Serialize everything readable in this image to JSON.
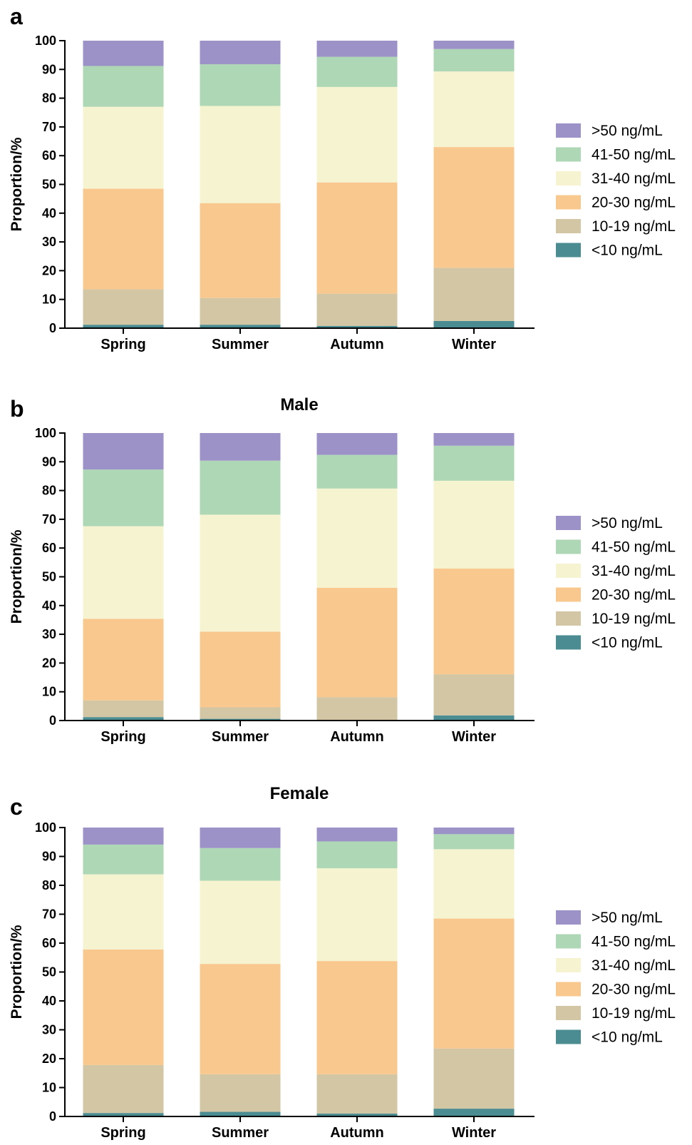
{
  "colors": {
    "lt10": "#4a8c92",
    "s10_19": "#d2c6a4",
    "s20_30": "#f9c88e",
    "s31_40": "#f6f4d0",
    "s41_50": "#aed7b5",
    "gt50": "#9d92c8"
  },
  "chart_data": [
    {
      "type": "bar",
      "stacked": true,
      "panel": "a",
      "title": "",
      "xlabel": "",
      "ylabel": "Proportion/%",
      "ylim": [
        0,
        100
      ],
      "yticks": [
        0,
        10,
        20,
        30,
        40,
        50,
        60,
        70,
        80,
        90,
        100
      ],
      "categories": [
        "Spring",
        "Summer",
        "Autumn",
        "Winter"
      ],
      "legend_position": "right",
      "series": [
        {
          "name": "<10 ng/mL",
          "color": "lt10",
          "values": [
            1.2,
            1.2,
            0.8,
            2.5
          ]
        },
        {
          "name": "10-19 ng/mL",
          "color": "s10_19",
          "values": [
            12.3,
            9.3,
            11.2,
            18.5
          ]
        },
        {
          "name": "20-30 ng/mL",
          "color": "s20_30",
          "values": [
            35.0,
            33.0,
            38.7,
            42.0
          ]
        },
        {
          "name": "31-40 ng/mL",
          "color": "s31_40",
          "values": [
            28.5,
            33.8,
            33.2,
            26.3
          ]
        },
        {
          "name": "41-50 ng/mL",
          "color": "s41_50",
          "values": [
            14.2,
            14.5,
            10.5,
            7.8
          ]
        },
        {
          "name": ">50 ng/mL",
          "color": "gt50",
          "values": [
            8.8,
            8.2,
            5.6,
            2.9
          ]
        }
      ]
    },
    {
      "type": "bar",
      "stacked": true,
      "panel": "b",
      "title": "Male",
      "xlabel": "",
      "ylabel": "Proportion/%",
      "ylim": [
        0,
        100
      ],
      "yticks": [
        0,
        10,
        20,
        30,
        40,
        50,
        60,
        70,
        80,
        90,
        100
      ],
      "categories": [
        "Spring",
        "Summer",
        "Autumn",
        "Winter"
      ],
      "legend_position": "right",
      "series": [
        {
          "name": "<10 ng/mL",
          "color": "lt10",
          "values": [
            1.2,
            0.6,
            0.2,
            1.8
          ]
        },
        {
          "name": "10-19 ng/mL",
          "color": "s10_19",
          "values": [
            5.8,
            4.0,
            7.9,
            14.3
          ]
        },
        {
          "name": "20-30 ng/mL",
          "color": "s20_30",
          "values": [
            28.4,
            26.3,
            38.1,
            36.8
          ]
        },
        {
          "name": "31-40 ng/mL",
          "color": "s31_40",
          "values": [
            32.2,
            40.7,
            34.5,
            30.5
          ]
        },
        {
          "name": "41-50 ng/mL",
          "color": "s41_50",
          "values": [
            19.7,
            18.8,
            11.7,
            12.2
          ]
        },
        {
          "name": ">50 ng/mL",
          "color": "gt50",
          "values": [
            12.7,
            9.6,
            7.6,
            4.4
          ]
        }
      ]
    },
    {
      "type": "bar",
      "stacked": true,
      "panel": "c",
      "title": "Female",
      "xlabel": "",
      "ylabel": "Proportion/%",
      "ylim": [
        0,
        100
      ],
      "yticks": [
        0,
        10,
        20,
        30,
        40,
        50,
        60,
        70,
        80,
        90,
        100
      ],
      "categories": [
        "Spring",
        "Summer",
        "Autumn",
        "Winter"
      ],
      "legend_position": "right",
      "series": [
        {
          "name": "<10 ng/mL",
          "color": "lt10",
          "values": [
            1.2,
            1.6,
            1.0,
            2.7
          ]
        },
        {
          "name": "10-19 ng/mL",
          "color": "s10_19",
          "values": [
            16.6,
            13.0,
            13.6,
            20.8
          ]
        },
        {
          "name": "20-30 ng/mL",
          "color": "s20_30",
          "values": [
            40.0,
            38.2,
            39.2,
            45.0
          ]
        },
        {
          "name": "31-40 ng/mL",
          "color": "s31_40",
          "values": [
            26.0,
            28.8,
            32.1,
            24.0
          ]
        },
        {
          "name": "41-50 ng/mL",
          "color": "s41_50",
          "values": [
            10.3,
            11.3,
            9.3,
            5.2
          ]
        },
        {
          "name": ">50 ng/mL",
          "color": "gt50",
          "values": [
            5.9,
            7.1,
            4.8,
            2.3
          ]
        }
      ]
    }
  ]
}
